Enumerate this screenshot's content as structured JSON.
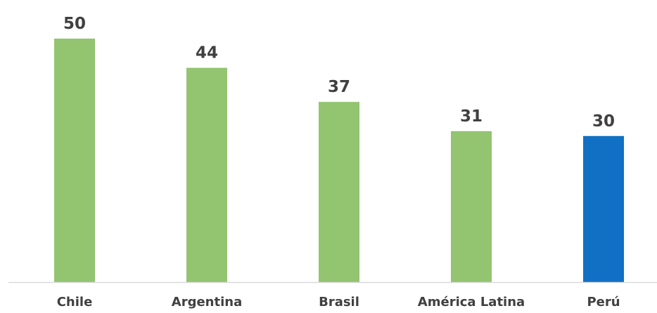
{
  "chart_data": {
    "type": "bar",
    "title": "",
    "xlabel": "",
    "ylabel": "",
    "categories": [
      "Chile",
      "Argentina",
      "Brasil",
      "América Latina",
      "Perú"
    ],
    "values": [
      50,
      44,
      37,
      31,
      30
    ],
    "data_labels": [
      "50",
      "44",
      "37",
      "31",
      "30"
    ],
    "ylim": [
      0,
      50
    ],
    "grid": false,
    "legend": "none",
    "colors": {
      "default_bar": "#93c470",
      "highlight_bar": "#1170c4",
      "axis_line": "#d9d9d9",
      "text": "#404040"
    },
    "highlight_category": "Perú"
  }
}
